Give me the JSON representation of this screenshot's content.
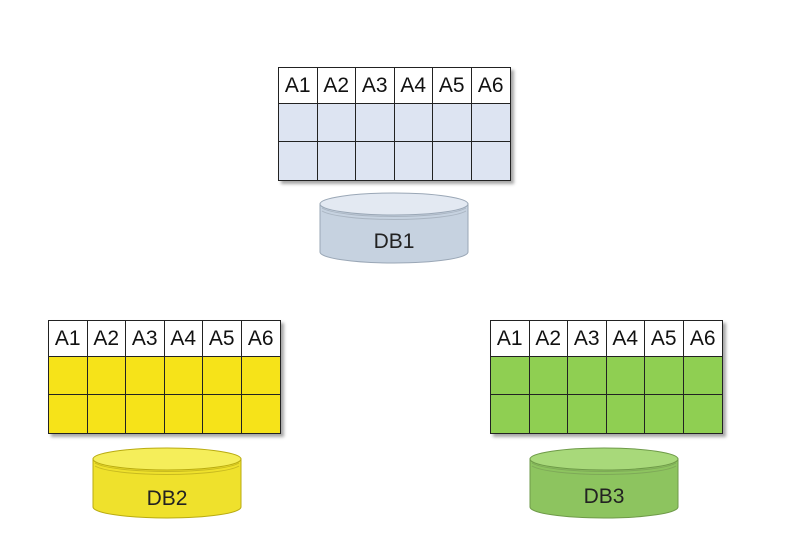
{
  "databases": [
    {
      "name": "DB1",
      "columns": [
        "A1",
        "A2",
        "A3",
        "A4",
        "A5",
        "A6"
      ],
      "row_fill": "#dde4f2",
      "cyl_top": "#e3e9f2",
      "cyl_body": "#c6d2e0"
    },
    {
      "name": "DB2",
      "columns": [
        "A1",
        "A2",
        "A3",
        "A4",
        "A5",
        "A6"
      ],
      "row_fill": "#f6e319",
      "cyl_top": "#f5ee5a",
      "cyl_body": "#efe12c"
    },
    {
      "name": "DB3",
      "columns": [
        "A1",
        "A2",
        "A3",
        "A4",
        "A5",
        "A6"
      ],
      "row_fill": "#8fcf52",
      "cyl_top": "#a8d97a",
      "cyl_body": "#8dc45f"
    }
  ]
}
